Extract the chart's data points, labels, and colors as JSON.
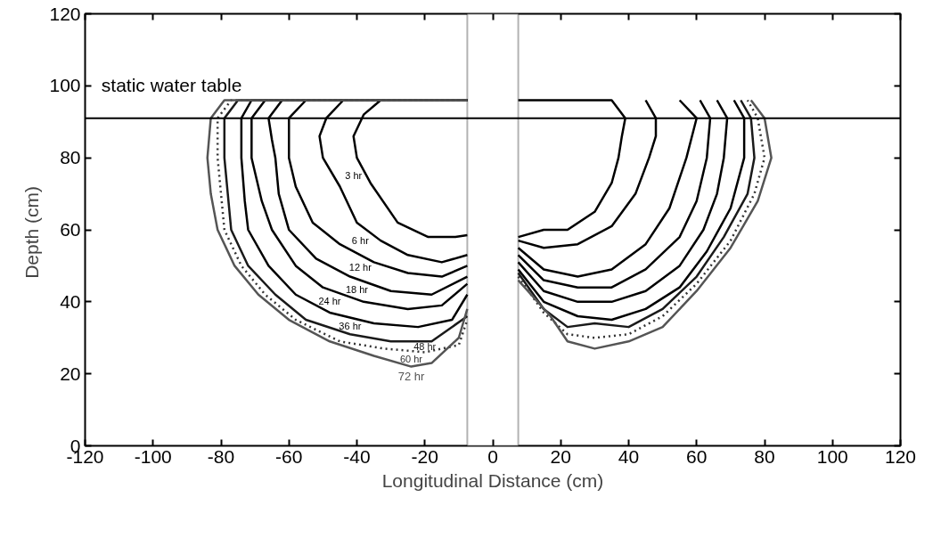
{
  "chart_data": {
    "type": "line",
    "xlabel": "Longitudinal Distance (cm)",
    "ylabel": "Depth  (cm)",
    "xlim": [
      -120,
      120
    ],
    "xticks": [
      -120,
      -100,
      -80,
      -60,
      -40,
      -20,
      0,
      20,
      40,
      60,
      80,
      100,
      120
    ],
    "ylim": [
      0,
      120
    ],
    "yticks": [
      0,
      20,
      40,
      60,
      80,
      100,
      120
    ],
    "grid": false,
    "series": [
      {
        "name": "3 hr",
        "color": "#000000",
        "x": [
          -7.5,
          -33,
          -38,
          -41,
          -40,
          -36,
          -28,
          -19,
          -11,
          -7.5,
          null,
          7.5,
          15,
          22,
          30,
          35,
          37,
          38,
          39,
          35,
          7.5
        ],
        "values": [
          96,
          96,
          92,
          86,
          80,
          73,
          62,
          58,
          58,
          58.5,
          null,
          58,
          60,
          60,
          65,
          73,
          80,
          86,
          91,
          96,
          96
        ]
      },
      {
        "name": "6 hr",
        "color": "#000000",
        "x": [
          -7.5,
          -44,
          -49,
          -51,
          -50,
          -45,
          -40,
          -33,
          -25,
          -15,
          -7.5,
          null,
          7.5,
          15,
          25,
          35,
          42,
          46,
          48,
          48,
          45
        ],
        "values": [
          96,
          96,
          91,
          86,
          80,
          72,
          62,
          57,
          53,
          51,
          53,
          null,
          57,
          55,
          56,
          61,
          70,
          80,
          86,
          91,
          96
        ]
      },
      {
        "name": "12 hr",
        "color": "#000000",
        "x": [
          -7.5,
          -55,
          -60,
          -60,
          -60,
          -58,
          -53,
          -45,
          -35,
          -25,
          -15,
          -7.5,
          null,
          7.5,
          15,
          25,
          35,
          45,
          52,
          57,
          60,
          55
        ],
        "values": [
          96,
          96,
          91,
          85,
          80,
          72,
          62,
          56,
          51,
          48,
          47,
          50,
          null,
          55,
          49,
          47,
          49,
          56,
          66,
          80,
          91,
          96
        ]
      },
      {
        "name": "18 hr",
        "color": "#000000",
        "x": [
          -7.5,
          -62,
          -66,
          -65,
          -64,
          -63,
          -60,
          -52,
          -42,
          -30,
          -18,
          -7.5,
          null,
          7.5,
          15,
          25,
          35,
          45,
          55,
          60,
          63,
          64,
          61
        ],
        "values": [
          96,
          96,
          91,
          85,
          80,
          70,
          60,
          52,
          47,
          43,
          42,
          47,
          null,
          53,
          46,
          44,
          44,
          49,
          58,
          68,
          80,
          91,
          96
        ]
      },
      {
        "name": "24 hr",
        "color": "#000000",
        "x": [
          -7.5,
          -67,
          -71,
          -71,
          -68,
          -65,
          -58,
          -50,
          -38,
          -25,
          -15,
          -7.5,
          null,
          7.5,
          15,
          25,
          35,
          45,
          55,
          62,
          66,
          68,
          69,
          66
        ],
        "values": [
          96,
          96,
          91,
          80,
          68,
          60,
          50,
          44,
          40,
          38,
          39,
          45,
          null,
          51,
          43,
          40,
          40,
          43,
          50,
          60,
          70,
          80,
          91,
          96
        ]
      },
      {
        "name": "36 hr",
        "color": "#000000",
        "x": [
          -7.5,
          -71,
          -74,
          -74,
          -73,
          -72,
          -66,
          -58,
          -48,
          -35,
          -22,
          -12,
          -7.5,
          null,
          7.5,
          15,
          25,
          35,
          45,
          55,
          63,
          70,
          74,
          74,
          71
        ],
        "values": [
          96,
          96,
          91,
          80,
          68,
          60,
          50,
          42,
          37,
          34,
          33,
          35,
          42,
          null,
          49,
          40,
          36,
          35,
          38,
          44,
          54,
          66,
          80,
          91,
          96
        ]
      },
      {
        "name": "48 hr",
        "color": "#1a1a1a",
        "x": [
          -7.5,
          -75,
          -79,
          -79,
          -78,
          -77,
          -72,
          -64,
          -55,
          -42,
          -30,
          -18,
          -7.5,
          null,
          7.5,
          15,
          22,
          30,
          40,
          50,
          60,
          68,
          75,
          77,
          76,
          73
        ],
        "values": [
          96,
          96,
          91,
          80,
          70,
          60,
          50,
          42,
          35,
          31,
          29,
          29,
          36,
          null,
          48,
          38,
          33,
          34,
          33,
          38,
          47,
          58,
          70,
          80,
          91,
          96
        ]
      },
      {
        "name": "60 hr",
        "color": "#333333",
        "line_style": "dotted",
        "x": [
          -7.5,
          -77,
          -81,
          -81,
          -80,
          -79,
          -74,
          -67,
          -58,
          -45,
          -32,
          -20,
          -10,
          -7.5,
          null,
          7.5,
          15,
          22,
          30,
          40,
          50,
          60,
          70,
          77,
          80,
          78,
          75
        ],
        "values": [
          96,
          96,
          91,
          80,
          70,
          60,
          50,
          42,
          35,
          29,
          27,
          26,
          28,
          35,
          null,
          47,
          37,
          31,
          30,
          31,
          36,
          45,
          57,
          70,
          80,
          91,
          96
        ]
      },
      {
        "name": "72 hr",
        "color": "#555555",
        "x": [
          -7.5,
          -79,
          -83,
          -84,
          -83,
          -81,
          -76,
          -69,
          -60,
          -48,
          -35,
          -24,
          -18,
          -10,
          -7.5,
          null,
          7.5,
          17,
          22,
          30,
          40,
          50,
          60,
          70,
          78,
          82,
          80,
          76
        ],
        "values": [
          96,
          96,
          91,
          80,
          70,
          60,
          50,
          42,
          35,
          29,
          25,
          22,
          23,
          30,
          38,
          null,
          46,
          36,
          29,
          27,
          29,
          33,
          43,
          55,
          68,
          80,
          91,
          96
        ]
      }
    ],
    "ref_lines": [
      {
        "axis": "y",
        "value": 91,
        "label": "static water table",
        "color": "#000000"
      }
    ],
    "bands": [
      {
        "axis": "x",
        "from": -7.5,
        "to": 7.5,
        "color": "#ffffff"
      }
    ],
    "marker": "none"
  }
}
